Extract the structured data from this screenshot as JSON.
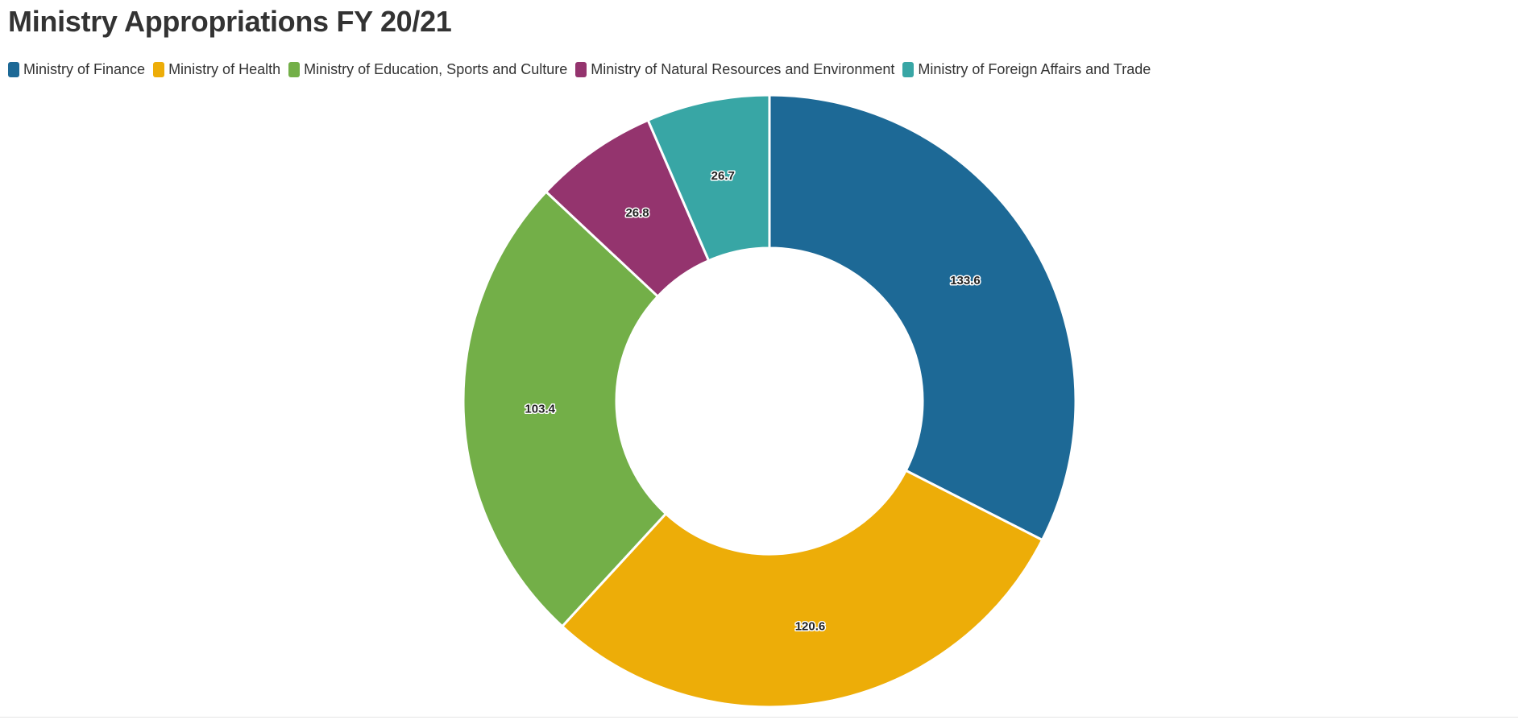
{
  "chart_data": {
    "type": "pie",
    "donut": true,
    "title": "Ministry Appropriations FY 20/21",
    "legend_position": "top-left",
    "series": [
      {
        "name": "Ministry of Finance",
        "value": 133.6,
        "color": "#1d6996"
      },
      {
        "name": "Ministry of Health",
        "value": 120.6,
        "color": "#edad08"
      },
      {
        "name": "Ministry of Education, Sports and Culture",
        "value": 103.4,
        "color": "#73af48"
      },
      {
        "name": "Ministry of Natural Resources and Environment",
        "value": 26.8,
        "color": "#94346e"
      },
      {
        "name": "Ministry of Foreign Affairs and Trade",
        "value": 26.7,
        "color": "#38a6a5"
      }
    ]
  }
}
